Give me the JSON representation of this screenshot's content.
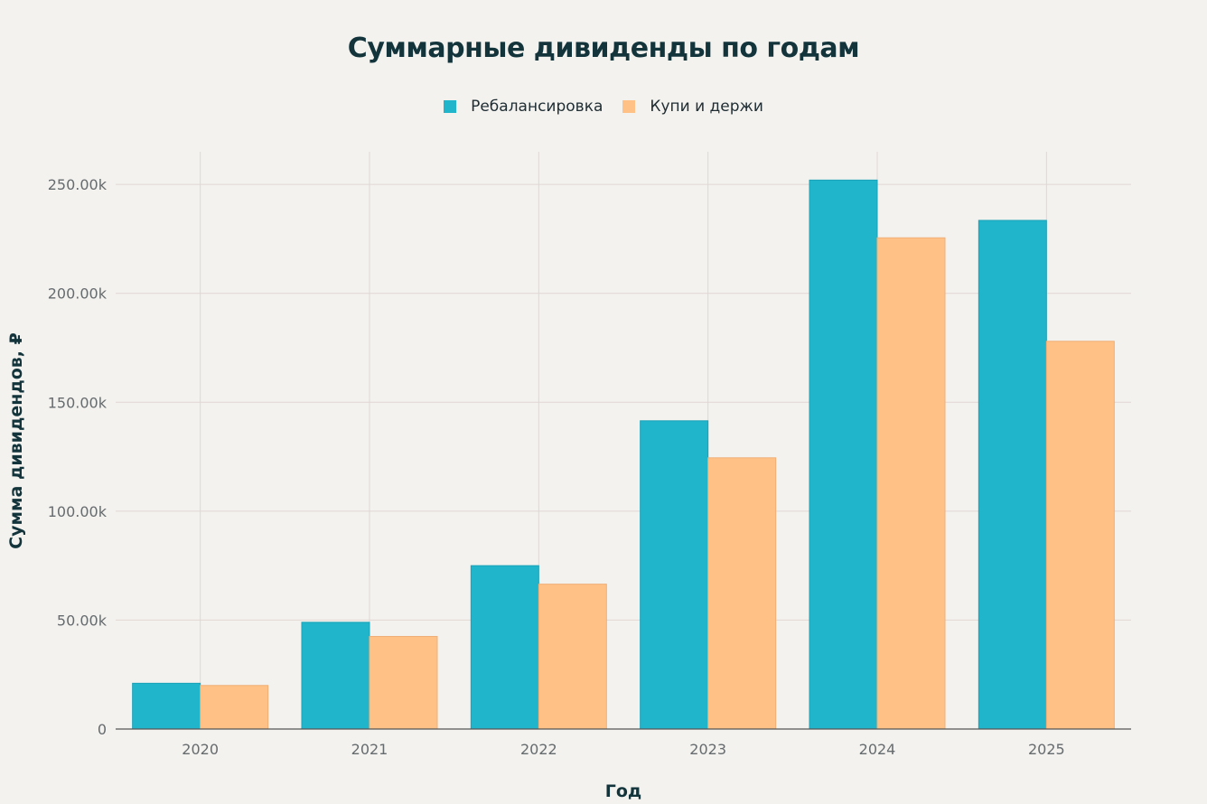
{
  "chart_data": {
    "type": "bar",
    "title": "Суммарные дивиденды по годам",
    "xlabel": "Год",
    "ylabel": "Сумма дивидендов, ₽",
    "categories": [
      "2020",
      "2021",
      "2022",
      "2023",
      "2024",
      "2025"
    ],
    "series": [
      {
        "name": "Ребалансировка",
        "color": "#21b5cc",
        "values": [
          21000,
          49000,
          75000,
          141500,
          252000,
          233500
        ]
      },
      {
        "name": "Купи и держи",
        "color": "#ffc185",
        "values": [
          20000,
          42500,
          66500,
          124500,
          225500,
          178000
        ]
      }
    ],
    "ylim": [
      0,
      265000
    ],
    "yticks": [
      0,
      50000,
      100000,
      150000,
      200000,
      250000
    ],
    "ytick_labels": [
      "0",
      "50.00k",
      "100.00k",
      "150.00k",
      "200.00k",
      "250.00k"
    ],
    "grid": true,
    "legend_position": "top-center"
  }
}
